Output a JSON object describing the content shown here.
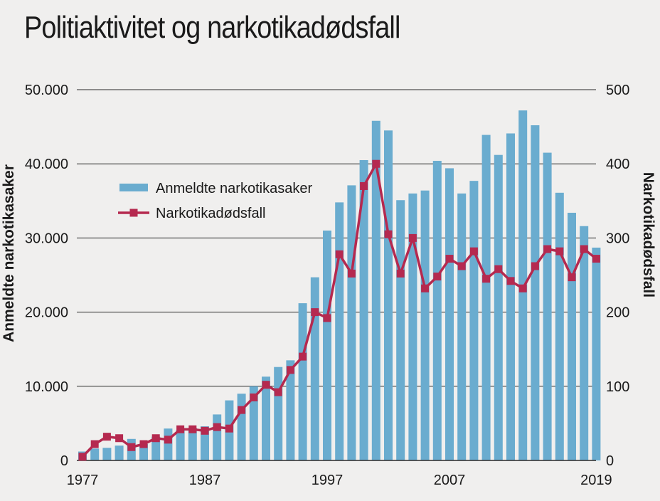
{
  "title": "Politiaktivitet og narkotikadødsfall",
  "colors": {
    "bars": "#6aaccf",
    "line": "#b5294f",
    "background": "#f0efee",
    "grid": "#2a2a2a"
  },
  "chart_data": {
    "type": "bar",
    "title": "Politiaktivitet og narkotikadødsfall",
    "x": [
      1977,
      1978,
      1979,
      1980,
      1981,
      1982,
      1983,
      1984,
      1985,
      1986,
      1987,
      1988,
      1989,
      1990,
      1991,
      1992,
      1993,
      1994,
      1995,
      1996,
      1997,
      1998,
      1999,
      2000,
      2001,
      2002,
      2003,
      2004,
      2005,
      2006,
      2007,
      2008,
      2009,
      2010,
      2011,
      2012,
      2013,
      2014,
      2015,
      2016,
      2017,
      2018,
      2019
    ],
    "x_tick_labels": [
      "1977",
      "1987",
      "1997",
      "2007",
      "2019"
    ],
    "x_tick_values": [
      1977,
      1987,
      1997,
      2007,
      2019
    ],
    "ylabel_left": "Anmeldte narkotikasaker",
    "ylabel_right": "Narkotikadødsfall",
    "ylim_left": [
      0,
      50000
    ],
    "ylim_right": [
      0,
      500
    ],
    "y_ticks_left": [
      "0",
      "10.000",
      "20.000",
      "30.000",
      "40.000",
      "50.000"
    ],
    "y_ticks_right": [
      "0",
      "100",
      "200",
      "300",
      "400",
      "500"
    ],
    "grid": true,
    "legend_position": "top-left",
    "series": [
      {
        "name": "Anmeldte narkotikasaker",
        "type": "bar",
        "axis": "left",
        "values": [
          1200,
          1600,
          1700,
          2000,
          2900,
          2200,
          3200,
          4300,
          4100,
          4400,
          4600,
          6200,
          8100,
          9000,
          10000,
          11300,
          12600,
          13500,
          21200,
          24700,
          31000,
          34800,
          37100,
          40500,
          45800,
          44500,
          35100,
          36000,
          36400,
          40400,
          39400,
          36000,
          37700,
          43900,
          41200,
          44100,
          47200,
          45200,
          41500,
          36100,
          33400,
          31600,
          28700
        ]
      },
      {
        "name": "Narkotikadødsfall",
        "type": "line",
        "axis": "right",
        "values": [
          5,
          22,
          32,
          30,
          18,
          22,
          30,
          28,
          42,
          42,
          40,
          45,
          43,
          68,
          85,
          102,
          92,
          122,
          140,
          200,
          192,
          278,
          252,
          370,
          400,
          305,
          252,
          300,
          232,
          248,
          272,
          262,
          282,
          245,
          258,
          242,
          232,
          262,
          285,
          282,
          247,
          285,
          272
        ]
      }
    ]
  }
}
